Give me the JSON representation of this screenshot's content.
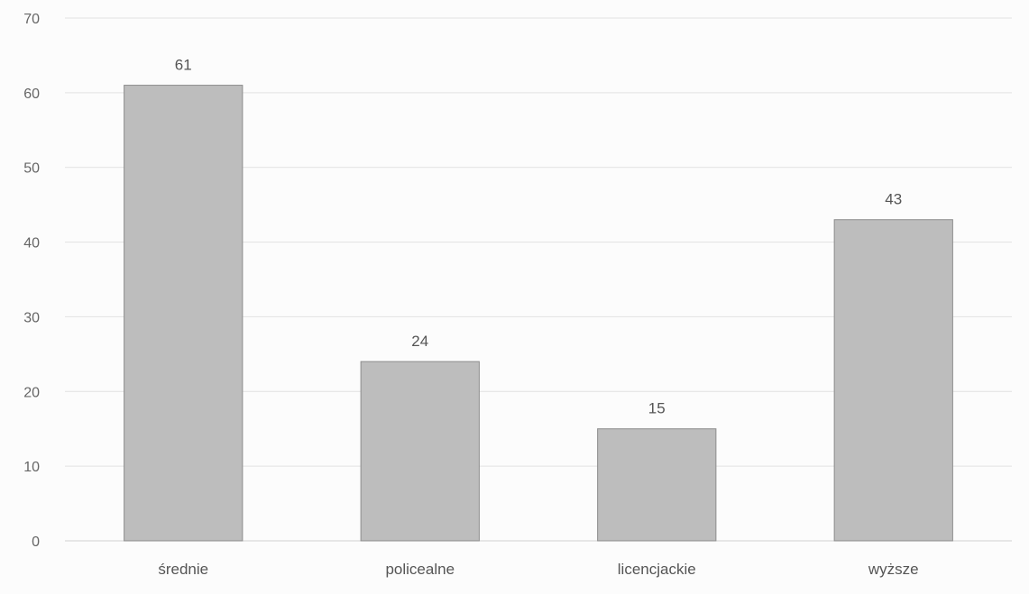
{
  "chart_data": {
    "type": "bar",
    "categories": [
      "średnie",
      "policealne",
      "licencjackie",
      "wyższe"
    ],
    "values": [
      61,
      24,
      15,
      43
    ],
    "data_labels": [
      "61",
      "24",
      "15",
      "43"
    ],
    "title": "",
    "xlabel": "",
    "ylabel": "",
    "ylim": [
      0,
      70
    ],
    "yticks": [
      0,
      10,
      20,
      30,
      40,
      50,
      60,
      70
    ],
    "ytick_labels": [
      "0",
      "10",
      "20",
      "30",
      "40",
      "50",
      "60",
      "70"
    ],
    "grid": true,
    "legend": "none",
    "bar_color": "#bdbdbd",
    "bar_edge_color": "#8c8c8c",
    "grid_color": "#e2e2e2"
  }
}
